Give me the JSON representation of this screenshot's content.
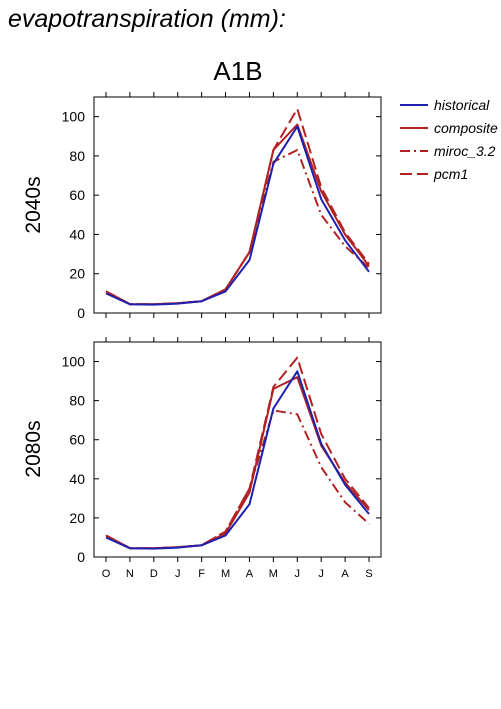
{
  "figure": {
    "title": "evapotranspiration (mm):",
    "scenario": "A1B"
  },
  "chart_data": [
    {
      "type": "line",
      "panel_label": "2040s",
      "categories": [
        "O",
        "N",
        "D",
        "J",
        "F",
        "M",
        "A",
        "M",
        "J",
        "J",
        "A",
        "S"
      ],
      "ylim": [
        0,
        110
      ],
      "yticks": [
        0,
        20,
        40,
        60,
        80,
        100
      ],
      "series": [
        {
          "name": "historical",
          "color": "#2020b0",
          "dash": "solid",
          "values": [
            10,
            4.5,
            4.3,
            4.8,
            6,
            11,
            27,
            76,
            95,
            58,
            37,
            21
          ]
        },
        {
          "name": "composite",
          "color": "#b22222",
          "dash": "solid",
          "values": [
            11,
            4.5,
            4.5,
            5,
            6,
            12,
            31,
            83,
            96,
            62,
            40,
            24
          ]
        },
        {
          "name": "miroc_3.2",
          "color": "#b22222",
          "dash": "dashdot",
          "values": [
            11,
            4.5,
            4.5,
            5,
            6,
            12,
            31,
            77,
            83,
            50,
            34,
            23
          ]
        },
        {
          "name": "pcm1",
          "color": "#b22222",
          "dash": "dash",
          "values": [
            11,
            4.5,
            4.5,
            5,
            6,
            12,
            31,
            83,
            104,
            64,
            41,
            25
          ]
        }
      ]
    },
    {
      "type": "line",
      "panel_label": "2080s",
      "categories": [
        "O",
        "N",
        "D",
        "J",
        "F",
        "M",
        "A",
        "M",
        "J",
        "J",
        "A",
        "S"
      ],
      "ylim": [
        0,
        110
      ],
      "yticks": [
        0,
        20,
        40,
        60,
        80,
        100
      ],
      "series": [
        {
          "name": "historical",
          "color": "#2020b0",
          "dash": "solid",
          "values": [
            10,
            4.5,
            4.3,
            4.8,
            6,
            11,
            27,
            76,
            95,
            58,
            37,
            22
          ]
        },
        {
          "name": "composite",
          "color": "#b22222",
          "dash": "solid",
          "values": [
            11,
            4.5,
            4.5,
            5,
            6,
            12,
            33,
            86,
            92,
            57,
            38,
            24
          ]
        },
        {
          "name": "miroc_3.2",
          "color": "#b22222",
          "dash": "dashdot",
          "values": [
            11,
            4.5,
            4.5,
            5,
            6,
            13,
            35,
            75,
            73,
            46,
            28,
            17
          ]
        },
        {
          "name": "pcm1",
          "color": "#b22222",
          "dash": "dash",
          "values": [
            11,
            4.5,
            4.5,
            5,
            6,
            13,
            35,
            87,
            102,
            63,
            40,
            25
          ]
        }
      ]
    }
  ]
}
